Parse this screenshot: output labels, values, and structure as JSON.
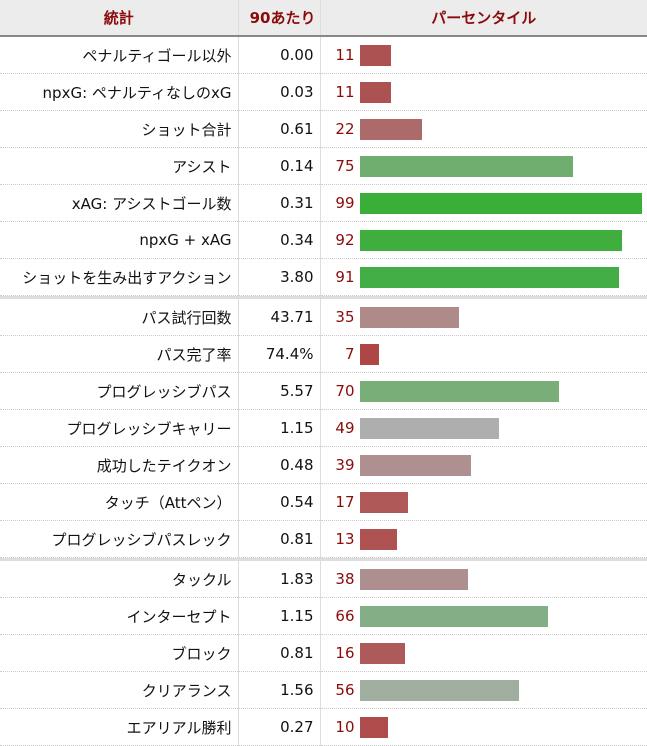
{
  "header": {
    "stat": "統計",
    "per90": "90あたり",
    "percentile": "パーセンタイル"
  },
  "groups": [
    [
      {
        "stat": "ペナルティゴール以外",
        "per90": "0.00",
        "percentile": 11,
        "color": "#ad5252"
      },
      {
        "stat": "npxG: ペナルティなしのxG",
        "per90": "0.03",
        "percentile": 11,
        "color": "#ad5252"
      },
      {
        "stat": "ショット合計",
        "per90": "0.61",
        "percentile": 22,
        "color": "#ad6a6a"
      },
      {
        "stat": "アシスト",
        "per90": "0.14",
        "percentile": 75,
        "color": "#6fae6f"
      },
      {
        "stat": "xAG: アシストゴール数",
        "per90": "0.31",
        "percentile": 99,
        "color": "#39ae39"
      },
      {
        "stat": "npxG + xAG",
        "per90": "0.34",
        "percentile": 92,
        "color": "#3fae3f"
      },
      {
        "stat": "ショットを生み出すアクション",
        "per90": "3.80",
        "percentile": 91,
        "color": "#42ae45"
      }
    ],
    [
      {
        "stat": "パス試行回数",
        "per90": "43.71",
        "percentile": 35,
        "color": "#ae8a88"
      },
      {
        "stat": "パス完了率",
        "per90": "74.4%",
        "percentile": 7,
        "color": "#ae4646"
      },
      {
        "stat": "プログレッシブパス",
        "per90": "5.57",
        "percentile": 70,
        "color": "#7aae78"
      },
      {
        "stat": "プログレッシブキャリー",
        "per90": "1.15",
        "percentile": 49,
        "color": "#aeaeae"
      },
      {
        "stat": "成功したテイクオン",
        "per90": "0.48",
        "percentile": 39,
        "color": "#ae9090"
      },
      {
        "stat": "タッチ（Attペン）",
        "per90": "0.54",
        "percentile": 17,
        "color": "#ae5858"
      },
      {
        "stat": "プログレッシブパスレック",
        "per90": "0.81",
        "percentile": 13,
        "color": "#ae5252"
      }
    ],
    [
      {
        "stat": "タックル",
        "per90": "1.83",
        "percentile": 38,
        "color": "#ae8f8f"
      },
      {
        "stat": "インターセプト",
        "per90": "1.15",
        "percentile": 66,
        "color": "#84ae86"
      },
      {
        "stat": "ブロック",
        "per90": "0.81",
        "percentile": 16,
        "color": "#ae5a5a"
      },
      {
        "stat": "クリアランス",
        "per90": "1.56",
        "percentile": 56,
        "color": "#a0ae a0"
      },
      {
        "stat": "エアリアル勝利",
        "per90": "0.27",
        "percentile": 10,
        "color": "#ae4c4c"
      }
    ]
  ]
}
